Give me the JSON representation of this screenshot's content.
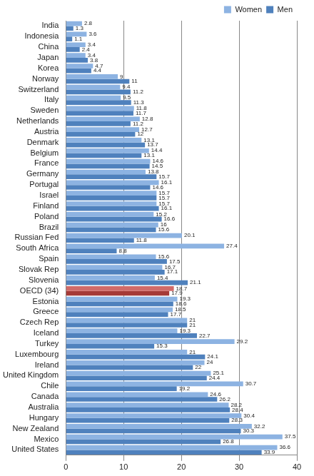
{
  "chart_data": {
    "type": "bar",
    "orientation": "horizontal",
    "categories": [
      "India",
      "Indonesia",
      "China",
      "Japan",
      "Korea",
      "Norway",
      "Switzerland",
      "Italy",
      "Sweden",
      "Netherlands",
      "Austria",
      "Denmark",
      "Belgium",
      "France",
      "Germany",
      "Portugal",
      "Israel",
      "Finland",
      "Poland",
      "Brazil",
      "Russian Fed",
      "South Africa",
      "Spain",
      "Slovak Rep",
      "Slovenia",
      "OECD (34)",
      "Estonia",
      "Greece",
      "Czech Rep",
      "Iceland",
      "Turkey",
      "Luxembourg",
      "Ireland",
      "United Kingdom",
      "Chile",
      "Canada",
      "Australia",
      "Hungary",
      "New Zealand",
      "Mexico",
      "United States"
    ],
    "series": [
      {
        "name": "Women",
        "color": "#8db3e2",
        "colors": [
          "#8db3e2",
          "#8db3e2",
          "#8db3e2",
          "#8db3e2",
          "#8db3e2",
          "#8db3e2",
          "#8db3e2",
          "#8db3e2",
          "#8db3e2",
          "#8db3e2",
          "#8db3e2",
          "#8db3e2",
          "#8db3e2",
          "#8db3e2",
          "#8db3e2",
          "#8db3e2",
          "#8db3e2",
          "#8db3e2",
          "#8db3e2",
          "#8db3e2",
          "#8db3e2",
          "#8db3e2",
          "#8db3e2",
          "#8db3e2",
          "#8db3e2",
          "#d06b69",
          "#8db3e2",
          "#8db3e2",
          "#8db3e2",
          "#8db3e2",
          "#8db3e2",
          "#8db3e2",
          "#8db3e2",
          "#8db3e2",
          "#8db3e2",
          "#8db3e2",
          "#8db3e2",
          "#8db3e2",
          "#8db3e2",
          "#8db3e2",
          "#8db3e2"
        ],
        "values": [
          2.8,
          3.6,
          3.4,
          3.4,
          4.7,
          9,
          9.4,
          9.5,
          11.8,
          12.8,
          12.7,
          13.1,
          14.4,
          14.6,
          13.8,
          16.1,
          15.7,
          15.7,
          15.2,
          16,
          20.1,
          27.4,
          15.6,
          16.7,
          15.4,
          18.7,
          19.3,
          18.5,
          21,
          19.3,
          29.2,
          21,
          24,
          25.1,
          30.7,
          24.6,
          28.2,
          30.4,
          32.2,
          37.5,
          36.6
        ]
      },
      {
        "name": "Men",
        "color": "#4f81bd",
        "colors": [
          "#4f81bd",
          "#4f81bd",
          "#4f81bd",
          "#4f81bd",
          "#4f81bd",
          "#4f81bd",
          "#4f81bd",
          "#4f81bd",
          "#4f81bd",
          "#4f81bd",
          "#4f81bd",
          "#4f81bd",
          "#4f81bd",
          "#4f81bd",
          "#4f81bd",
          "#4f81bd",
          "#4f81bd",
          "#4f81bd",
          "#4f81bd",
          "#4f81bd",
          "#4f81bd",
          "#4f81bd",
          "#4f81bd",
          "#4f81bd",
          "#4f81bd",
          "#a53a37",
          "#4f81bd",
          "#4f81bd",
          "#4f81bd",
          "#4f81bd",
          "#4f81bd",
          "#4f81bd",
          "#4f81bd",
          "#4f81bd",
          "#4f81bd",
          "#4f81bd",
          "#4f81bd",
          "#4f81bd",
          "#4f81bd",
          "#4f81bd",
          "#4f81bd"
        ],
        "values": [
          1.3,
          1.1,
          2.4,
          3.8,
          4.4,
          11,
          11.2,
          11.3,
          11.7,
          11.2,
          12,
          13.7,
          13.1,
          14.5,
          15.7,
          14.6,
          15.7,
          16.1,
          16.6,
          15.6,
          11.8,
          8.8,
          17.5,
          17.1,
          21.1,
          17.9,
          18.6,
          17.7,
          21,
          22.7,
          15.3,
          24.1,
          22,
          24.4,
          19.2,
          26.2,
          28.4,
          28.3,
          30.3,
          26.8,
          33.9
        ]
      }
    ],
    "xlim": [
      0,
      40
    ],
    "xticks": [
      0,
      10,
      20,
      30,
      40
    ],
    "grid": true,
    "legend": "top right",
    "data_labels": true
  }
}
